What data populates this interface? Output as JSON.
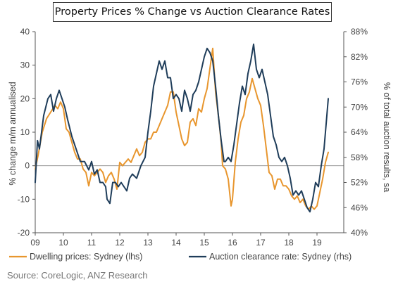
{
  "chart_data": {
    "type": "line",
    "title": "Property Prices % Change vs Auction Clearance Rates",
    "ylabel_left": "% change m/m annualised",
    "ylabel_right": "% of total auction results, sa",
    "x_tick_labels": [
      "09",
      "10",
      "11",
      "12",
      "13",
      "14",
      "15",
      "16",
      "17",
      "18",
      "19"
    ],
    "y_left": {
      "min": -20,
      "max": 40,
      "ticks": [
        -20,
        -10,
        0,
        10,
        20,
        30,
        40
      ]
    },
    "y_right": {
      "min": 40,
      "max": 88,
      "ticks": [
        "40%",
        "46%",
        "52%",
        "58%",
        "64%",
        "70%",
        "76%",
        "82%",
        "88%"
      ]
    },
    "series": [
      {
        "name": "Dwelling prices: Sydney (lhs)",
        "axis": "left",
        "color": "#e8962e",
        "points": [
          [
            2009.0,
            -1
          ],
          [
            2009.1,
            3
          ],
          [
            2009.25,
            10
          ],
          [
            2009.4,
            14
          ],
          [
            2009.55,
            16
          ],
          [
            2009.7,
            18
          ],
          [
            2009.8,
            17
          ],
          [
            2009.9,
            19
          ],
          [
            2010.0,
            17
          ],
          [
            2010.1,
            11
          ],
          [
            2010.2,
            10
          ],
          [
            2010.3,
            7
          ],
          [
            2010.4,
            4
          ],
          [
            2010.5,
            2
          ],
          [
            2010.6,
            2
          ],
          [
            2010.7,
            -1
          ],
          [
            2010.8,
            -2
          ],
          [
            2010.9,
            -6
          ],
          [
            2011.0,
            -2
          ],
          [
            2011.1,
            -3
          ],
          [
            2011.2,
            -2
          ],
          [
            2011.3,
            -1
          ],
          [
            2011.4,
            -2
          ],
          [
            2011.5,
            -5
          ],
          [
            2011.6,
            -3
          ],
          [
            2011.7,
            -2
          ],
          [
            2011.8,
            -4
          ],
          [
            2011.9,
            -7
          ],
          [
            2012.0,
            1
          ],
          [
            2012.1,
            0
          ],
          [
            2012.2,
            1
          ],
          [
            2012.3,
            2
          ],
          [
            2012.4,
            1
          ],
          [
            2012.5,
            3
          ],
          [
            2012.6,
            5
          ],
          [
            2012.7,
            3
          ],
          [
            2012.8,
            4
          ],
          [
            2012.9,
            7
          ],
          [
            2013.0,
            8
          ],
          [
            2013.1,
            8
          ],
          [
            2013.2,
            10
          ],
          [
            2013.3,
            10
          ],
          [
            2013.4,
            12
          ],
          [
            2013.5,
            14
          ],
          [
            2013.6,
            16
          ],
          [
            2013.7,
            18
          ],
          [
            2013.8,
            22
          ],
          [
            2013.9,
            22
          ],
          [
            2014.0,
            16
          ],
          [
            2014.1,
            12
          ],
          [
            2014.2,
            8
          ],
          [
            2014.3,
            6
          ],
          [
            2014.4,
            7
          ],
          [
            2014.5,
            13
          ],
          [
            2014.6,
            14
          ],
          [
            2014.7,
            12
          ],
          [
            2014.8,
            17
          ],
          [
            2014.9,
            16
          ],
          [
            2015.0,
            20
          ],
          [
            2015.1,
            23
          ],
          [
            2015.2,
            29
          ],
          [
            2015.3,
            35
          ],
          [
            2015.4,
            22
          ],
          [
            2015.5,
            15
          ],
          [
            2015.6,
            7
          ],
          [
            2015.65,
            0
          ],
          [
            2015.75,
            -1
          ],
          [
            2015.85,
            -4
          ],
          [
            2015.95,
            -12
          ],
          [
            2016.0,
            -10
          ],
          [
            2016.1,
            1
          ],
          [
            2016.2,
            8
          ],
          [
            2016.3,
            13
          ],
          [
            2016.4,
            15
          ],
          [
            2016.5,
            20
          ],
          [
            2016.6,
            22
          ],
          [
            2016.7,
            26
          ],
          [
            2016.8,
            23
          ],
          [
            2016.9,
            20
          ],
          [
            2017.0,
            18
          ],
          [
            2017.1,
            12
          ],
          [
            2017.2,
            5
          ],
          [
            2017.3,
            -2
          ],
          [
            2017.4,
            -3
          ],
          [
            2017.5,
            -7
          ],
          [
            2017.6,
            -4
          ],
          [
            2017.7,
            -4
          ],
          [
            2017.8,
            -6
          ],
          [
            2017.9,
            -6
          ],
          [
            2018.0,
            -7
          ],
          [
            2018.1,
            -9
          ],
          [
            2018.2,
            -10
          ],
          [
            2018.3,
            -9
          ],
          [
            2018.4,
            -11
          ],
          [
            2018.5,
            -10
          ],
          [
            2018.6,
            -12
          ],
          [
            2018.7,
            -13
          ],
          [
            2018.8,
            -12
          ],
          [
            2018.9,
            -13
          ],
          [
            2019.0,
            -12
          ],
          [
            2019.1,
            -8
          ],
          [
            2019.2,
            -4
          ],
          [
            2019.3,
            1
          ],
          [
            2019.4,
            4
          ]
        ]
      },
      {
        "name": "Auction clearance rate: Sydney (rhs)",
        "axis": "right",
        "color": "#1f3d5a",
        "points": [
          [
            2009.0,
            52
          ],
          [
            2009.08,
            62
          ],
          [
            2009.15,
            60
          ],
          [
            2009.3,
            68
          ],
          [
            2009.45,
            72
          ],
          [
            2009.55,
            73
          ],
          [
            2009.65,
            69
          ],
          [
            2009.75,
            72
          ],
          [
            2009.85,
            74
          ],
          [
            2009.95,
            72
          ],
          [
            2010.05,
            70
          ],
          [
            2010.15,
            67
          ],
          [
            2010.3,
            63
          ],
          [
            2010.45,
            60
          ],
          [
            2010.6,
            57
          ],
          [
            2010.75,
            57
          ],
          [
            2010.9,
            55
          ],
          [
            2011.0,
            57
          ],
          [
            2011.1,
            54
          ],
          [
            2011.2,
            55
          ],
          [
            2011.3,
            52
          ],
          [
            2011.4,
            52
          ],
          [
            2011.5,
            51
          ],
          [
            2011.55,
            48
          ],
          [
            2011.65,
            47
          ],
          [
            2011.75,
            52
          ],
          [
            2011.85,
            52
          ],
          [
            2011.95,
            51
          ],
          [
            2012.05,
            52
          ],
          [
            2012.15,
            51
          ],
          [
            2012.25,
            50
          ],
          [
            2012.35,
            53
          ],
          [
            2012.45,
            54
          ],
          [
            2012.6,
            53
          ],
          [
            2012.75,
            56
          ],
          [
            2012.9,
            58
          ],
          [
            2013.0,
            64
          ],
          [
            2013.1,
            69
          ],
          [
            2013.2,
            75
          ],
          [
            2013.3,
            78
          ],
          [
            2013.4,
            81
          ],
          [
            2013.5,
            79
          ],
          [
            2013.6,
            81
          ],
          [
            2013.7,
            77
          ],
          [
            2013.8,
            77
          ],
          [
            2013.9,
            72
          ],
          [
            2014.0,
            73
          ],
          [
            2014.1,
            72
          ],
          [
            2014.2,
            69
          ],
          [
            2014.3,
            74
          ],
          [
            2014.4,
            72
          ],
          [
            2014.5,
            69
          ],
          [
            2014.6,
            73
          ],
          [
            2014.7,
            74
          ],
          [
            2014.8,
            76
          ],
          [
            2014.9,
            79
          ],
          [
            2015.0,
            82
          ],
          [
            2015.1,
            84
          ],
          [
            2015.2,
            83
          ],
          [
            2015.3,
            81
          ],
          [
            2015.4,
            75
          ],
          [
            2015.5,
            68
          ],
          [
            2015.6,
            62
          ],
          [
            2015.7,
            57
          ],
          [
            2015.75,
            57
          ],
          [
            2015.85,
            58
          ],
          [
            2015.95,
            57
          ],
          [
            2016.05,
            61
          ],
          [
            2016.15,
            66
          ],
          [
            2016.25,
            71
          ],
          [
            2016.35,
            75
          ],
          [
            2016.45,
            73
          ],
          [
            2016.55,
            78
          ],
          [
            2016.65,
            81
          ],
          [
            2016.75,
            85
          ],
          [
            2016.85,
            79
          ],
          [
            2016.95,
            77
          ],
          [
            2017.05,
            79
          ],
          [
            2017.15,
            76
          ],
          [
            2017.25,
            73
          ],
          [
            2017.35,
            68
          ],
          [
            2017.45,
            63
          ],
          [
            2017.55,
            61
          ],
          [
            2017.65,
            58
          ],
          [
            2017.75,
            57
          ],
          [
            2017.85,
            58
          ],
          [
            2017.95,
            56
          ],
          [
            2018.05,
            53
          ],
          [
            2018.15,
            49
          ],
          [
            2018.25,
            50
          ],
          [
            2018.35,
            49
          ],
          [
            2018.45,
            50
          ],
          [
            2018.55,
            48
          ],
          [
            2018.65,
            46
          ],
          [
            2018.75,
            45
          ],
          [
            2018.85,
            48
          ],
          [
            2018.95,
            52
          ],
          [
            2019.05,
            51
          ],
          [
            2019.15,
            56
          ],
          [
            2019.25,
            60
          ],
          [
            2019.35,
            68
          ],
          [
            2019.4,
            72
          ]
        ]
      }
    ],
    "source": "Source: CoreLogic, ANZ Research"
  }
}
